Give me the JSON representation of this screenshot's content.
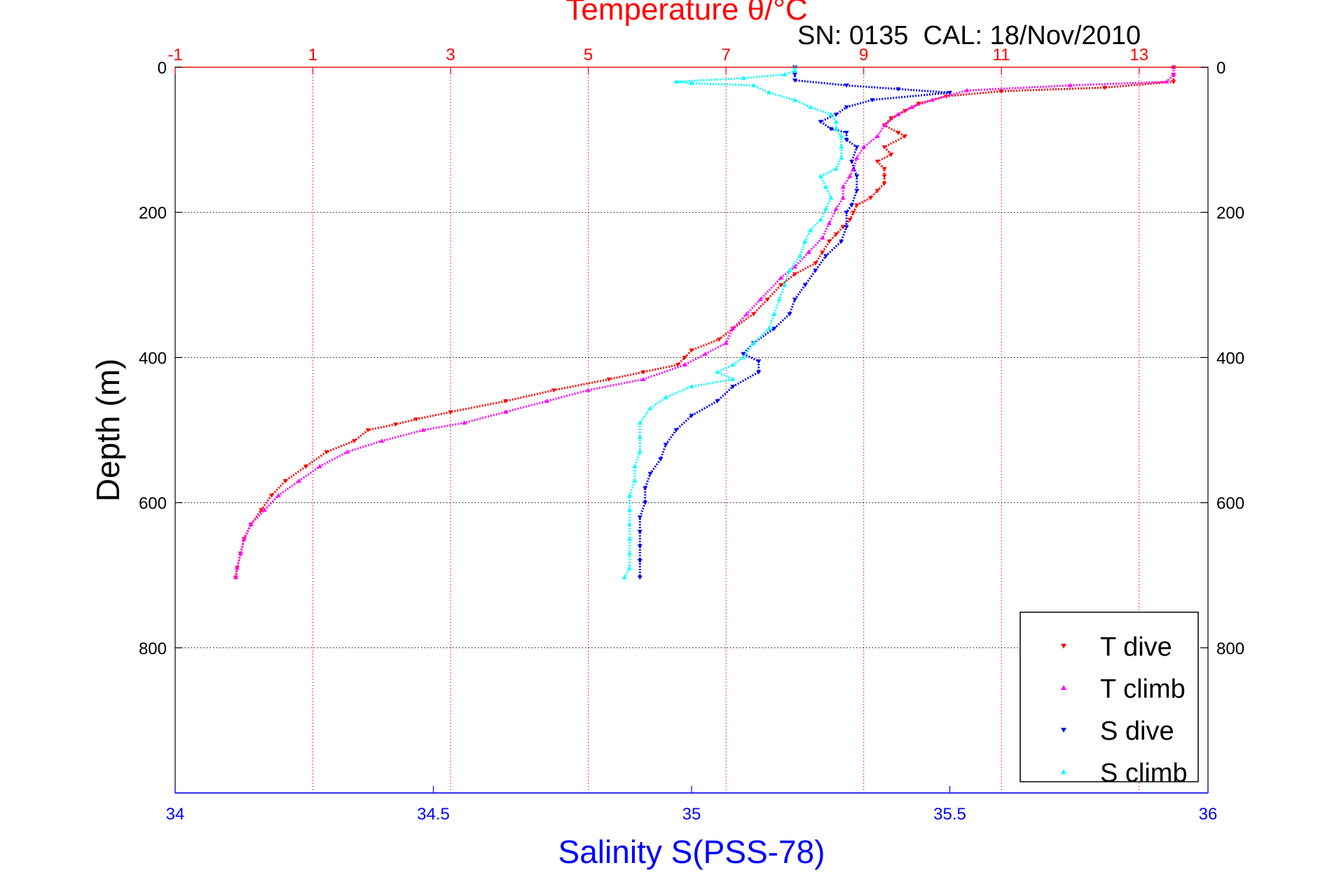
{
  "chart_data": {
    "type": "scatter",
    "title": "Temperature θ/°C",
    "annotation": "SN: 0135  CAL: 18/Nov/2010",
    "xlabel": "Salinity S(PSS-78)",
    "ylabel": "Depth (m)",
    "top_axis": {
      "label": "Temperature θ/°C",
      "range": [
        -1,
        14
      ],
      "ticks": [
        "-1",
        "1",
        "3",
        "5",
        "7",
        "9",
        "11",
        "13"
      ],
      "color": "#ff0000"
    },
    "bottom_axis": {
      "label": "Salinity S(PSS-78)",
      "range": [
        34,
        36
      ],
      "ticks": [
        "34",
        "34.5",
        "35",
        "35.5",
        "36"
      ],
      "color": "#0000ff"
    },
    "y_axis": {
      "range": [
        0,
        1000
      ],
      "reversed": true,
      "ticks": [
        "0",
        "200",
        "400",
        "600",
        "800"
      ]
    },
    "grid": true,
    "legend_position": "bottom-right",
    "series": [
      {
        "name": "T dive",
        "axis": "temperature",
        "color": "#ff0000",
        "marker": "▾",
        "points": [
          [
            13.5,
            0
          ],
          [
            13.5,
            10
          ],
          [
            13.5,
            20
          ],
          [
            12.5,
            28
          ],
          [
            11,
            33
          ],
          [
            10.2,
            40
          ],
          [
            9.8,
            50
          ],
          [
            9.6,
            60
          ],
          [
            9.4,
            70
          ],
          [
            9.3,
            80
          ],
          [
            9.5,
            90
          ],
          [
            9.6,
            95
          ],
          [
            9.3,
            110
          ],
          [
            9.4,
            120
          ],
          [
            9.2,
            130
          ],
          [
            9.3,
            140
          ],
          [
            9.3,
            150
          ],
          [
            9.3,
            160
          ],
          [
            9.2,
            170
          ],
          [
            9.1,
            180
          ],
          [
            8.9,
            190
          ],
          [
            8.85,
            200
          ],
          [
            8.8,
            210
          ],
          [
            8.7,
            220
          ],
          [
            8.6,
            230
          ],
          [
            8.5,
            240
          ],
          [
            8.4,
            255
          ],
          [
            8.3,
            270
          ],
          [
            8.0,
            285
          ],
          [
            7.8,
            300
          ],
          [
            7.6,
            320
          ],
          [
            7.4,
            340
          ],
          [
            7.1,
            360
          ],
          [
            6.9,
            375
          ],
          [
            6.5,
            390
          ],
          [
            6.4,
            400
          ],
          [
            6.3,
            410
          ],
          [
            5.8,
            420
          ],
          [
            5.3,
            430
          ],
          [
            4.5,
            445
          ],
          [
            3.8,
            460
          ],
          [
            3.0,
            475
          ],
          [
            2.5,
            485
          ],
          [
            2.2,
            492
          ],
          [
            1.8,
            500
          ],
          [
            1.6,
            515
          ],
          [
            1.2,
            530
          ],
          [
            0.9,
            550
          ],
          [
            0.6,
            570
          ],
          [
            0.4,
            590
          ],
          [
            0.25,
            610
          ],
          [
            0.1,
            630
          ],
          [
            0.0,
            650
          ],
          [
            -0.05,
            670
          ],
          [
            -0.1,
            690
          ],
          [
            -0.12,
            703
          ]
        ]
      },
      {
        "name": "T climb",
        "axis": "temperature",
        "color": "#ff00ff",
        "marker": "▴",
        "points": [
          [
            13.5,
            0
          ],
          [
            13.5,
            10
          ],
          [
            13.4,
            20
          ],
          [
            12.0,
            25
          ],
          [
            10.5,
            32
          ],
          [
            10.0,
            45
          ],
          [
            9.7,
            55
          ],
          [
            9.5,
            65
          ],
          [
            9.3,
            80
          ],
          [
            9.2,
            95
          ],
          [
            9.0,
            110
          ],
          [
            8.9,
            125
          ],
          [
            8.85,
            140
          ],
          [
            8.8,
            150
          ],
          [
            8.7,
            165
          ],
          [
            8.7,
            180
          ],
          [
            8.6,
            195
          ],
          [
            8.5,
            215
          ],
          [
            8.4,
            235
          ],
          [
            8.2,
            255
          ],
          [
            8.0,
            275
          ],
          [
            7.8,
            290
          ],
          [
            7.5,
            320
          ],
          [
            7.3,
            340
          ],
          [
            7.1,
            360
          ],
          [
            7.0,
            380
          ],
          [
            6.7,
            395
          ],
          [
            6.4,
            410
          ],
          [
            5.8,
            430
          ],
          [
            5.0,
            445
          ],
          [
            4.4,
            460
          ],
          [
            3.8,
            475
          ],
          [
            3.2,
            490
          ],
          [
            2.6,
            500
          ],
          [
            2.0,
            515
          ],
          [
            1.5,
            530
          ],
          [
            1.1,
            550
          ],
          [
            0.8,
            570
          ],
          [
            0.5,
            590
          ],
          [
            0.3,
            610
          ],
          [
            0.1,
            630
          ],
          [
            0.0,
            650
          ],
          [
            -0.05,
            670
          ],
          [
            -0.1,
            690
          ],
          [
            -0.12,
            703
          ]
        ]
      },
      {
        "name": "S dive",
        "axis": "salinity",
        "color": "#0000ff",
        "marker": "▾",
        "points": [
          [
            35.2,
            0
          ],
          [
            35.2,
            10
          ],
          [
            35.2,
            18
          ],
          [
            35.3,
            25
          ],
          [
            35.4,
            30
          ],
          [
            35.5,
            35
          ],
          [
            35.35,
            45
          ],
          [
            35.3,
            55
          ],
          [
            35.28,
            65
          ],
          [
            35.25,
            75
          ],
          [
            35.27,
            85
          ],
          [
            35.3,
            90
          ],
          [
            35.3,
            100
          ],
          [
            35.32,
            110
          ],
          [
            35.31,
            130
          ],
          [
            35.32,
            150
          ],
          [
            35.32,
            170
          ],
          [
            35.31,
            190
          ],
          [
            35.3,
            200
          ],
          [
            35.3,
            220
          ],
          [
            35.29,
            240
          ],
          [
            35.26,
            260
          ],
          [
            35.24,
            280
          ],
          [
            35.22,
            300
          ],
          [
            35.2,
            320
          ],
          [
            35.19,
            340
          ],
          [
            35.16,
            360
          ],
          [
            35.12,
            380
          ],
          [
            35.1,
            395
          ],
          [
            35.13,
            405
          ],
          [
            35.13,
            420
          ],
          [
            35.08,
            440
          ],
          [
            35.05,
            460
          ],
          [
            35.0,
            480
          ],
          [
            34.97,
            500
          ],
          [
            34.95,
            520
          ],
          [
            34.94,
            540
          ],
          [
            34.92,
            560
          ],
          [
            34.91,
            580
          ],
          [
            34.91,
            600
          ],
          [
            34.9,
            620
          ],
          [
            34.9,
            640
          ],
          [
            34.9,
            660
          ],
          [
            34.9,
            680
          ],
          [
            34.9,
            703
          ]
        ]
      },
      {
        "name": "S climb",
        "axis": "salinity",
        "color": "#00ffff",
        "marker": "▴",
        "points": [
          [
            35.2,
            0
          ],
          [
            35.2,
            5
          ],
          [
            35.18,
            10
          ],
          [
            35.1,
            15
          ],
          [
            34.97,
            20
          ],
          [
            35.0,
            22
          ],
          [
            35.12,
            25
          ],
          [
            35.15,
            35
          ],
          [
            35.2,
            45
          ],
          [
            35.23,
            55
          ],
          [
            35.27,
            65
          ],
          [
            35.28,
            75
          ],
          [
            35.28,
            85
          ],
          [
            35.29,
            95
          ],
          [
            35.29,
            110
          ],
          [
            35.29,
            125
          ],
          [
            35.28,
            140
          ],
          [
            35.25,
            150
          ],
          [
            35.26,
            165
          ],
          [
            35.27,
            180
          ],
          [
            35.26,
            195
          ],
          [
            35.25,
            210
          ],
          [
            35.23,
            225
          ],
          [
            35.22,
            240
          ],
          [
            35.21,
            260
          ],
          [
            35.19,
            280
          ],
          [
            35.18,
            300
          ],
          [
            35.17,
            320
          ],
          [
            35.16,
            340
          ],
          [
            35.15,
            360
          ],
          [
            35.12,
            380
          ],
          [
            35.1,
            400
          ],
          [
            35.08,
            410
          ],
          [
            35.05,
            420
          ],
          [
            35.08,
            430
          ],
          [
            35.0,
            440
          ],
          [
            34.95,
            455
          ],
          [
            34.92,
            470
          ],
          [
            34.9,
            490
          ],
          [
            34.9,
            510
          ],
          [
            34.9,
            530
          ],
          [
            34.89,
            550
          ],
          [
            34.89,
            570
          ],
          [
            34.88,
            590
          ],
          [
            34.88,
            610
          ],
          [
            34.88,
            630
          ],
          [
            34.88,
            650
          ],
          [
            34.88,
            670
          ],
          [
            34.88,
            690
          ],
          [
            34.87,
            703
          ]
        ]
      }
    ]
  }
}
